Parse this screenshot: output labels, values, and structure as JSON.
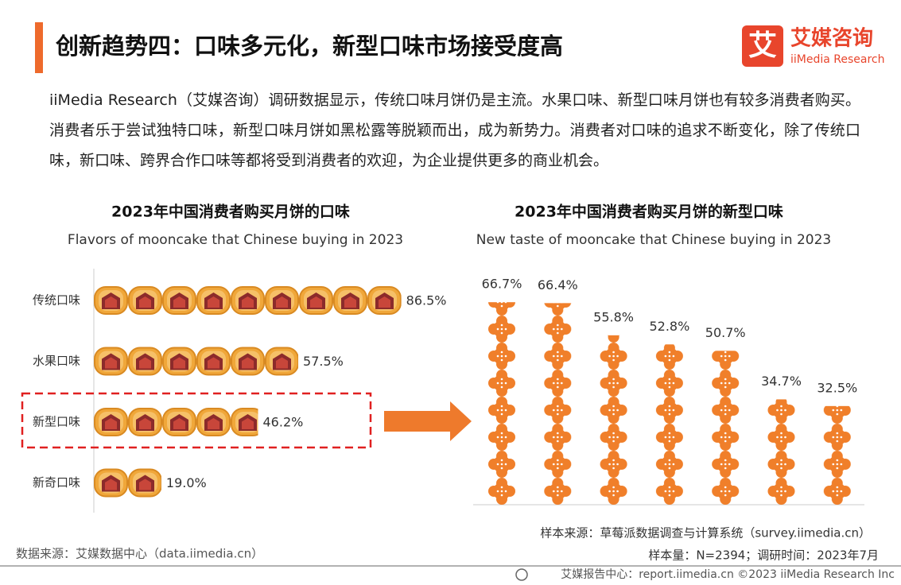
{
  "header": {
    "title": "创新趋势四：口味多元化，新型口味市场接受度高",
    "logo": {
      "mark": "艾",
      "name": "艾媒咨询",
      "name_en": "iiMedia Research"
    }
  },
  "intro": "iiMedia Research（艾媒咨询）调研数据显示，传统口味月饼仍是主流。水果口味、新型口味月饼也有较多消费者购买。消费者乐于尝试独特口味，新型口味月饼如黑松露等脱颖而出，成为新势力。消费者对口味的追求不断变化，除了传统口味，新口味、跨界合作口味等都将受到消费者的欢迎，为企业提供更多的商业机会。",
  "chart_data": [
    {
      "type": "pictograph-bar",
      "title": "2023年中国消费者购买月饼的口味",
      "subtitle": "Flavors of mooncake that Chinese buying in 2023",
      "categories": [
        "传统口味",
        "水果口味",
        "新型口味",
        "新奇口味"
      ],
      "values": [
        86.5,
        57.5,
        46.2,
        19.0
      ],
      "value_labels": [
        "86.5%",
        "57.5%",
        "46.2%",
        "19.0%"
      ],
      "color": "#f0a73a",
      "highlight": 2
    },
    {
      "type": "pictograph-column",
      "title": "2023年中国消费者购买月饼的新型口味",
      "subtitle": "New taste of mooncake that Chinese buying in 2023",
      "categories": [
        null,
        null,
        null,
        null,
        null,
        null,
        null
      ],
      "values": [
        66.7,
        66.4,
        55.8,
        52.8,
        50.7,
        34.7,
        32.5
      ],
      "value_labels": [
        "66.7%",
        "66.4%",
        "55.8%",
        "52.8%",
        "50.7%",
        "34.7%",
        "32.5%"
      ],
      "color": "#f07f2a"
    }
  ],
  "footer": {
    "sample_source": "样本来源：草莓派数据调查与计算系统（survey.iimedia.cn）",
    "data_source": "数据来源：艾媒数据中心（data.iimedia.cn）",
    "sample": "样本量：N=2394；调研时间：2023年7月",
    "report": "艾媒报告中心：report.iimedia.cn ©2023  iiMedia Research  Inc"
  }
}
